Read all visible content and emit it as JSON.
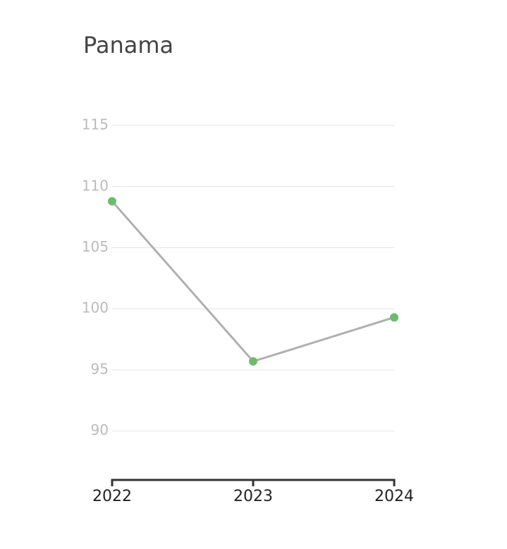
{
  "chart_data": {
    "type": "line",
    "title": "Panama",
    "x": [
      2022,
      2023,
      2024
    ],
    "values": [
      108.8,
      95.7,
      99.3
    ],
    "color": "#6dbb6d",
    "line_color": "#b0b0b0",
    "xlim": [
      2022,
      2024
    ],
    "xticks": [
      2022,
      2023,
      2024
    ],
    "ylim": [
      86,
      118
    ],
    "yticks": [
      90,
      95,
      100,
      105,
      110,
      115
    ],
    "grid": true
  }
}
